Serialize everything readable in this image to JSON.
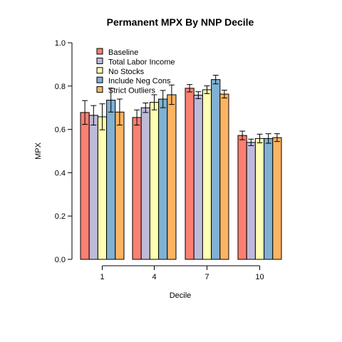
{
  "chart_data": {
    "type": "bar",
    "title": "Permanent MPX By NNP Decile",
    "xlabel": "Decile",
    "ylabel": "MPX",
    "ylim": [
      0,
      1
    ],
    "yticks": [
      "0.0",
      "0.2",
      "0.4",
      "0.6",
      "0.8",
      "1.0"
    ],
    "categories": [
      "1",
      "4",
      "7",
      "10"
    ],
    "legend_position": "top-left",
    "series": [
      {
        "name": "Baseline",
        "color": "#FB8072",
        "values": [
          0.678,
          0.655,
          0.79,
          0.572
        ],
        "errors": [
          0.055,
          0.035,
          0.017,
          0.02
        ]
      },
      {
        "name": "Total Labor Income",
        "color": "#BEBADA",
        "values": [
          0.665,
          0.7,
          0.758,
          0.54
        ],
        "errors": [
          0.045,
          0.022,
          0.016,
          0.015
        ]
      },
      {
        "name": "No Stocks",
        "color": "#FFFFB3",
        "values": [
          0.658,
          0.725,
          0.783,
          0.558
        ],
        "errors": [
          0.06,
          0.035,
          0.018,
          0.02
        ]
      },
      {
        "name": "Include Neg Cons",
        "color": "#80B1D3",
        "values": [
          0.735,
          0.74,
          0.83,
          0.558
        ],
        "errors": [
          0.055,
          0.04,
          0.02,
          0.022
        ]
      },
      {
        "name": "Strict Outliers",
        "color": "#FDB462",
        "values": [
          0.68,
          0.76,
          0.763,
          0.562
        ],
        "errors": [
          0.06,
          0.045,
          0.018,
          0.018
        ]
      }
    ]
  }
}
